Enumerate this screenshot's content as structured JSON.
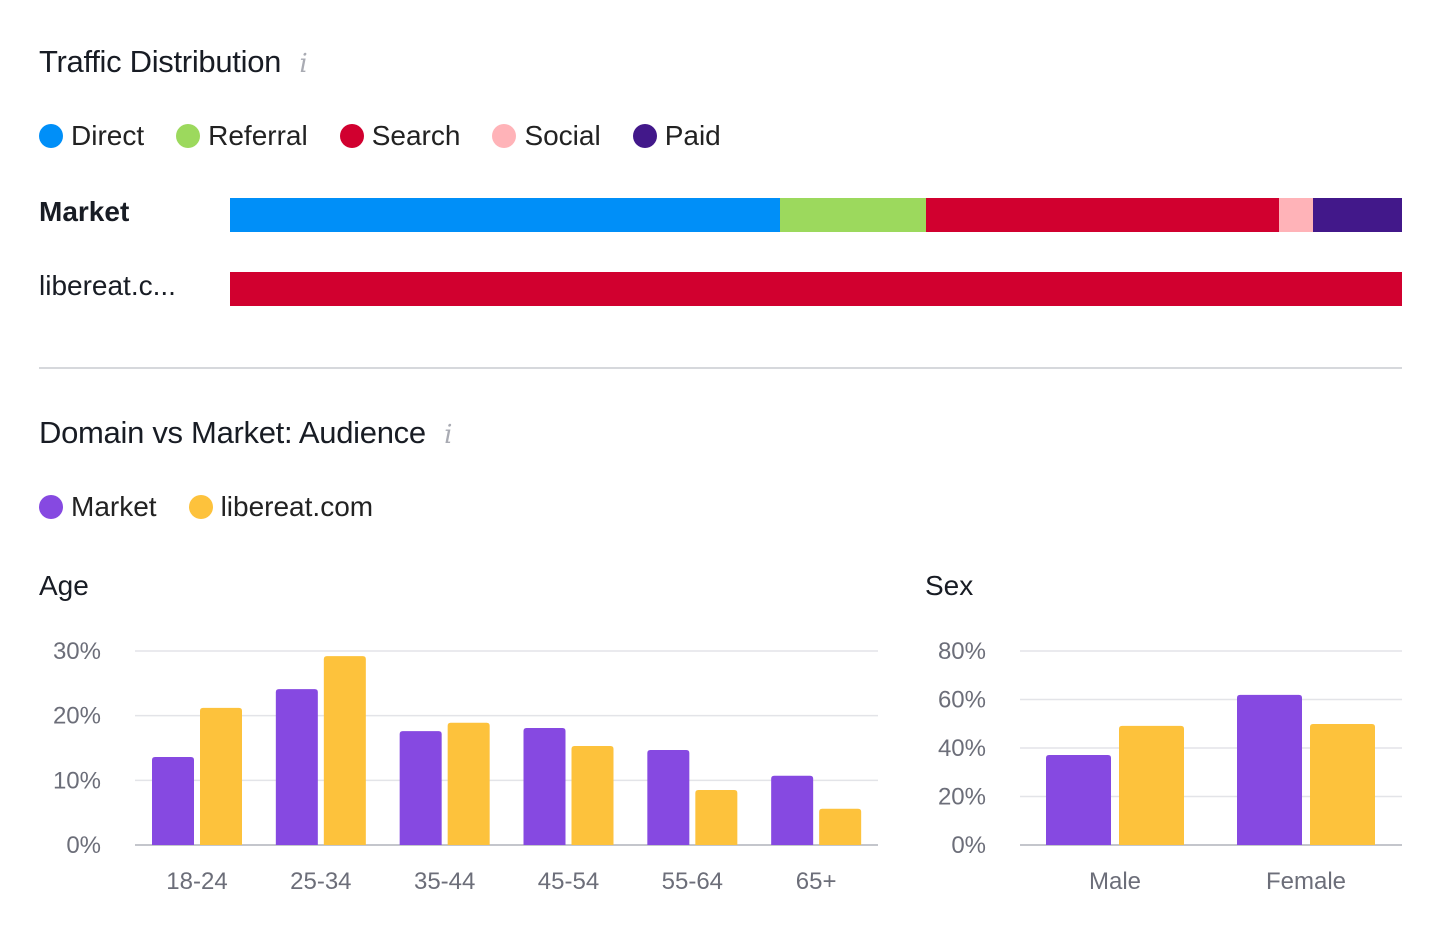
{
  "traffic": {
    "title": "Traffic Distribution",
    "info_icon": "info-icon",
    "legend": [
      {
        "label": "Direct",
        "color": "#008ff8"
      },
      {
        "label": "Referral",
        "color": "#9cd95d"
      },
      {
        "label": "Search",
        "color": "#d1002f"
      },
      {
        "label": "Social",
        "color": "#ffb3b8"
      },
      {
        "label": "Paid",
        "color": "#42188a"
      }
    ],
    "rows": [
      {
        "label": "Market",
        "values": [
          46.9,
          12.5,
          30.1,
          2.9,
          7.6
        ]
      },
      {
        "label": "libereat.c...",
        "values": [
          0,
          0,
          100,
          0,
          0
        ]
      }
    ]
  },
  "audience": {
    "title": "Domain vs Market: Audience",
    "legend": [
      {
        "label": "Market",
        "color": "#8649e1"
      },
      {
        "label": "libereat.com",
        "color": "#fdc23c"
      }
    ]
  },
  "chart_data": [
    {
      "type": "bar",
      "title": "Age",
      "categories": [
        "18-24",
        "25-34",
        "35-44",
        "45-54",
        "55-64",
        "65+"
      ],
      "series": [
        {
          "name": "Market",
          "color": "#8649e1",
          "values": [
            13.6,
            24.1,
            17.6,
            18.1,
            14.7,
            10.7
          ]
        },
        {
          "name": "libereat.com",
          "color": "#fdc23c",
          "values": [
            21.2,
            29.2,
            18.9,
            15.3,
            8.5,
            5.6
          ]
        }
      ],
      "ylim": [
        0,
        30
      ],
      "yticks": [
        "0%",
        "10%",
        "20%",
        "30%"
      ],
      "grid": true
    },
    {
      "type": "bar",
      "title": "Sex",
      "categories": [
        "Male",
        "Female"
      ],
      "series": [
        {
          "name": "Market",
          "color": "#8649e1",
          "values": [
            37.1,
            61.9
          ]
        },
        {
          "name": "libereat.com",
          "color": "#fdc23c",
          "values": [
            49.1,
            49.9
          ]
        }
      ],
      "ylim": [
        0,
        80
      ],
      "yticks": [
        "0%",
        "20%",
        "40%",
        "60%",
        "80%"
      ],
      "grid": true
    }
  ]
}
